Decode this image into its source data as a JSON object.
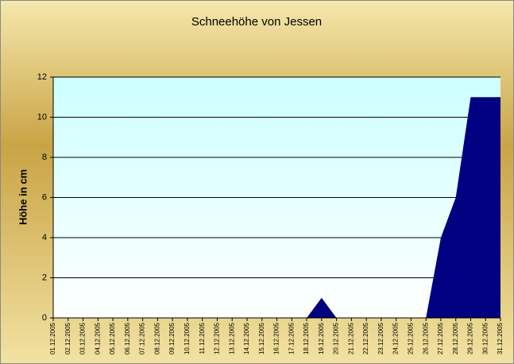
{
  "chart_data": {
    "type": "area",
    "title": "Schneehöhe von Jessen",
    "y_label": "Höhe in cm",
    "categories": [
      "01.12.2005",
      "02.12.2005",
      "03.12.2005",
      "04.12.2005",
      "05.12.2005",
      "06.12.2005",
      "07.12.2005",
      "08.12.2005",
      "09.12.2005",
      "10.12.2005",
      "11.12.2005",
      "12.12.2005",
      "13.12.2005",
      "14.12.2005",
      "15.12.2005",
      "16.12.2005",
      "17.12.2005",
      "18.12.2005",
      "19.12.2005",
      "20.12.2005",
      "21.12.2005",
      "22.12.2005",
      "23.12.2005",
      "24.12.2005",
      "25.12.2005",
      "26.12.2005",
      "27.12.2005",
      "28.12.2005",
      "29.12.2005",
      "30.12.2005",
      "31.12.2005"
    ],
    "values": [
      0,
      0,
      0,
      0,
      0,
      0,
      0,
      0,
      0,
      0,
      0,
      0,
      0,
      0,
      0,
      0,
      0,
      0,
      1,
      0,
      0,
      0,
      0,
      0,
      0,
      0,
      4,
      6,
      11,
      11,
      11
    ],
    "color": "#000080",
    "ylim": [
      0,
      12
    ],
    "yticks": [
      0,
      2,
      4,
      6,
      8,
      10,
      12
    ],
    "grid": true
  }
}
